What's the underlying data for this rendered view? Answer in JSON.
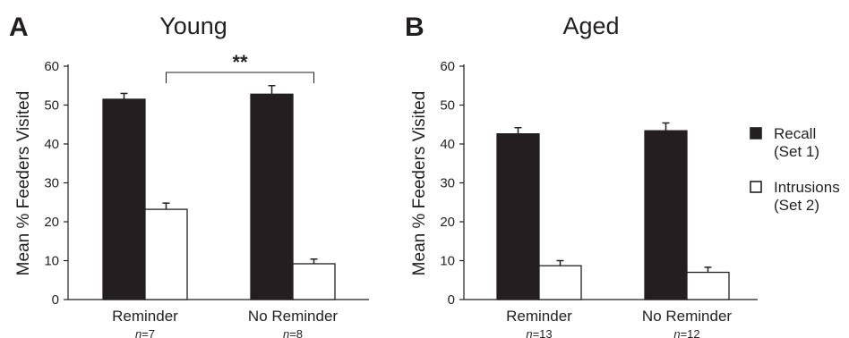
{
  "chart_data": [
    {
      "type": "bar",
      "panel_letter": "A",
      "title": "Young",
      "ylabel": "Mean % Feeders Visited",
      "ylim": [
        0,
        60
      ],
      "yticks": [
        "0",
        "10",
        "20",
        "30",
        "40",
        "50",
        "60"
      ],
      "categories": [
        "Reminder",
        "No Reminder"
      ],
      "n_labels": [
        {
          "italic": "n",
          "rest": "=7"
        },
        {
          "italic": "n",
          "rest": "=8"
        }
      ],
      "series": [
        {
          "name": "Recall (Set 1)",
          "values": [
            51.5,
            52.8
          ],
          "errors": [
            1.5,
            2.2
          ]
        },
        {
          "name": "Intrusions (Set 2)",
          "values": [
            23.2,
            9.2
          ],
          "errors": [
            1.6,
            1.2
          ]
        }
      ],
      "annotation": "**"
    },
    {
      "type": "bar",
      "panel_letter": "B",
      "title": "Aged",
      "ylabel": "Mean % Feeders Visited",
      "ylim": [
        0,
        60
      ],
      "yticks": [
        "0",
        "10",
        "20",
        "30",
        "40",
        "50",
        "60"
      ],
      "categories": [
        "Reminder",
        "No Reminder"
      ],
      "n_labels": [
        {
          "italic": "n",
          "rest": "=13"
        },
        {
          "italic": "n",
          "rest": "=12"
        }
      ],
      "series": [
        {
          "name": "Recall (Set 1)",
          "values": [
            42.6,
            43.4
          ],
          "errors": [
            1.6,
            2.0
          ]
        },
        {
          "name": "Intrusions (Set 2)",
          "values": [
            8.7,
            7.0
          ],
          "errors": [
            1.3,
            1.3
          ]
        }
      ]
    }
  ],
  "legend": {
    "placement": "right",
    "items": [
      {
        "line1": "Recall",
        "line2": "(Set 1)",
        "swatch": "#231f20"
      },
      {
        "line1": "Intrusions",
        "line2": "(Set 2)",
        "swatch": "#ffffff"
      }
    ]
  },
  "colors": {
    "recall": "#231f20",
    "intrusions": "#ffffff",
    "ink": "#231f20"
  }
}
